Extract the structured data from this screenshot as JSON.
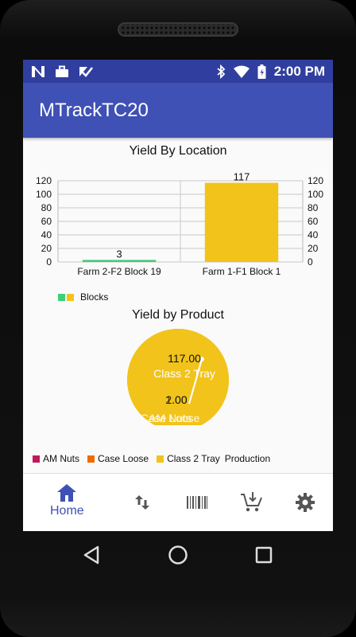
{
  "status_bar": {
    "left_icons": [
      "n-icon",
      "briefcase-icon",
      "checkbox-icon"
    ],
    "right_icons": [
      "bluetooth-icon",
      "wifi-icon",
      "battery-icon"
    ],
    "time": "2:00 PM"
  },
  "app_bar": {
    "title": "MTrackTC20"
  },
  "colors": {
    "status_bar": "#303f9f",
    "app_bar": "#3f51b5",
    "green": "#3ccf7a",
    "yellow": "#f2c31a",
    "am_nuts": "#c2185b",
    "case_loose": "#ef6c00"
  },
  "chart_data": [
    {
      "type": "bar",
      "title": "Yield By Location",
      "categories": [
        "Farm 2-F2 Block 19",
        "Farm 1-F1 Block 1"
      ],
      "values": [
        3,
        117
      ],
      "value_labels": [
        "3",
        "117"
      ],
      "bar_colors": [
        "#3ccf7a",
        "#f2c31a"
      ],
      "ylim": [
        0,
        120
      ],
      "yticks": [
        "0",
        "20",
        "40",
        "60",
        "80",
        "100",
        "120"
      ],
      "grid": true,
      "legend": {
        "label": "Blocks",
        "position": "bottom-left"
      }
    },
    {
      "type": "pie",
      "title": "Yield by Product",
      "slices": [
        {
          "label": "Class 2 Tray",
          "value": 117.0,
          "value_label": "117.00",
          "color": "#f2c31a"
        },
        {
          "label": "Case Loose",
          "value": 1.0,
          "value_label": "1.00",
          "color": "#ef6c00"
        },
        {
          "label": "AM Nuts",
          "value": 2.0,
          "value_label": "2.00",
          "color": "#c2185b"
        }
      ],
      "legend": {
        "entries": [
          "AM Nuts",
          "Case Loose",
          "Class 2 Tray"
        ],
        "trailing_label": "Production",
        "position": "bottom-left"
      }
    }
  ],
  "bottom_nav": {
    "items": [
      {
        "icon": "home-icon",
        "label": "Home",
        "selected": true
      },
      {
        "icon": "transfer-arrows-icon"
      },
      {
        "icon": "barcode-icon"
      },
      {
        "icon": "cart-download-icon"
      },
      {
        "icon": "gear-icon"
      }
    ]
  },
  "system_nav": [
    "back-icon",
    "home-circle-icon",
    "recents-icon"
  ]
}
